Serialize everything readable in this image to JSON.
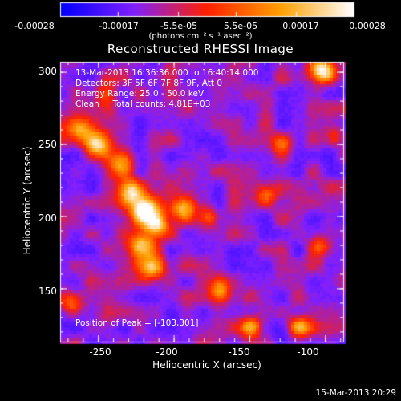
{
  "chart_data": {
    "type": "heatmap",
    "title": "Reconstructed RHESSI Image",
    "xlabel": "Heliocentric X (arcsec)",
    "ylabel": "Heliocentric Y (arcsec)",
    "xlim": [
      -275,
      -88
    ],
    "ylim": [
      113,
      307
    ],
    "x_ticks": [
      "-250",
      "-200",
      "-150",
      "-100"
    ],
    "x_tick_values": [
      -250,
      -200,
      -150,
      -100
    ],
    "y_ticks": [
      "150",
      "200",
      "250",
      "300"
    ],
    "y_tick_values": [
      150,
      200,
      250,
      300
    ],
    "colorbar": {
      "ticks": [
        "-0.00028",
        "-0.00017",
        "-5.5e-05",
        "5.5e-05",
        "0.00017",
        "0.00028"
      ],
      "tick_values": [
        -0.00028,
        -0.00017,
        -5.5e-05,
        5.5e-05,
        0.00017,
        0.00028
      ],
      "range": [
        -0.00028,
        0.00028
      ],
      "units_label": "(photons cm⁻² s⁻¹ asec⁻²)",
      "colormap": [
        "#0000ff",
        "#8020ff",
        "#ff2000",
        "#ffa000",
        "#ffffff"
      ]
    },
    "annotations": {
      "time_range": "13-Mar-2013 16:36:36.000 to 16:40:14.000",
      "detectors": "Detectors: 3F 5F 6F 7F 8F 9F, Att 0",
      "energy_range": "Energy Range: 25.0 - 50.0 keV",
      "clean_line": "Clean     Total counts: 4.81E+03",
      "peak": "Position of Peak = [-103,301]"
    },
    "peak_position": [
      -103,
      301
    ],
    "sources": [
      {
        "x": -103,
        "y": 301,
        "amplitude": 1.0,
        "width": 6
      },
      {
        "x": -262,
        "y": 260,
        "amplitude": 0.55,
        "width": 6
      },
      {
        "x": -250,
        "y": 250,
        "amplitude": 0.75,
        "width": 6
      },
      {
        "x": -235,
        "y": 235,
        "amplitude": 0.6,
        "width": 6
      },
      {
        "x": -228,
        "y": 218,
        "amplitude": 0.85,
        "width": 6
      },
      {
        "x": -220,
        "y": 205,
        "amplitude": 0.95,
        "width": 6
      },
      {
        "x": -212,
        "y": 195,
        "amplitude": 0.8,
        "width": 6
      },
      {
        "x": -222,
        "y": 180,
        "amplitude": 0.7,
        "width": 6
      },
      {
        "x": -215,
        "y": 165,
        "amplitude": 0.6,
        "width": 6
      },
      {
        "x": -195,
        "y": 205,
        "amplitude": 0.6,
        "width": 6
      },
      {
        "x": -178,
        "y": 200,
        "amplitude": 0.5,
        "width": 5
      },
      {
        "x": -150,
        "y": 125,
        "amplitude": 0.55,
        "width": 5
      },
      {
        "x": -118,
        "y": 125,
        "amplitude": 0.6,
        "width": 5
      },
      {
        "x": -105,
        "y": 180,
        "amplitude": 0.45,
        "width": 5
      },
      {
        "x": -170,
        "y": 150,
        "amplitude": 0.45,
        "width": 5
      },
      {
        "x": -140,
        "y": 215,
        "amplitude": 0.4,
        "width": 5
      },
      {
        "x": -268,
        "y": 140,
        "amplitude": 0.45,
        "width": 5
      },
      {
        "x": -245,
        "y": 285,
        "amplitude": 0.4,
        "width": 5
      },
      {
        "x": -130,
        "y": 250,
        "amplitude": 0.35,
        "width": 5
      },
      {
        "x": -95,
        "y": 255,
        "amplitude": 0.4,
        "width": 5
      }
    ],
    "date_stamp": "15-Mar-2013 20:29"
  }
}
